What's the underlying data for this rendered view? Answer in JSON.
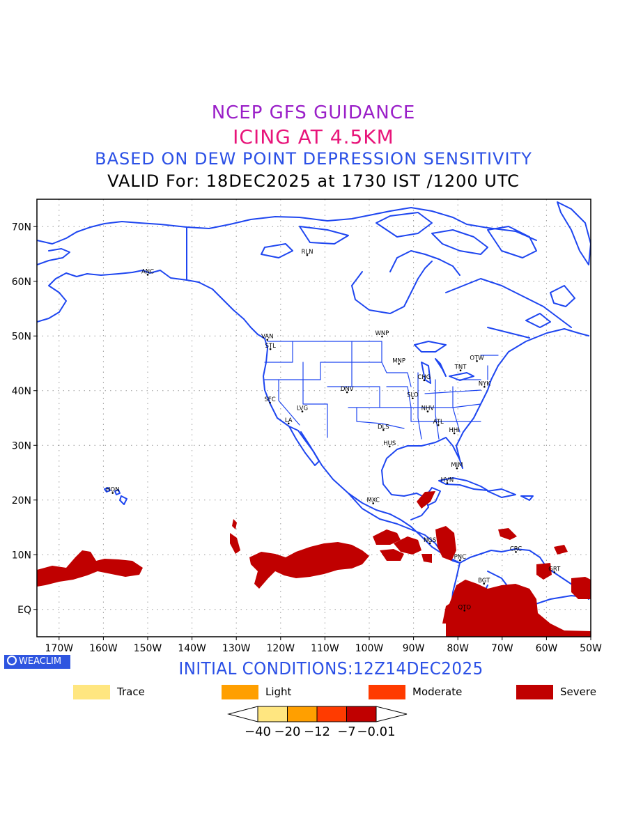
{
  "header": {
    "line1": "NCEP GFS GUIDANCE",
    "line2": "ICING AT 4.5KM",
    "line3": "BASED ON DEW POINT DEPRESSION SENSITIVITY",
    "line4": "VALID For: 18DEC2025 at 1730 IST /1200 UTC"
  },
  "colors": {
    "line1": "#9a1fc8",
    "line2": "#e8157a",
    "line3": "#2b50e6",
    "coast": "#1e46f0",
    "grid": "#999999",
    "trace": "#ffe680",
    "light": "#ff9f00",
    "moderate": "#ff3b00",
    "severe": "#c00000"
  },
  "map": {
    "lon_range": [
      -175,
      -50
    ],
    "lat_range": [
      -5,
      75
    ],
    "lon_ticks": [
      {
        "lon": -170,
        "label": "170W"
      },
      {
        "lon": -160,
        "label": "160W"
      },
      {
        "lon": -150,
        "label": "150W"
      },
      {
        "lon": -140,
        "label": "140W"
      },
      {
        "lon": -130,
        "label": "130W"
      },
      {
        "lon": -120,
        "label": "120W"
      },
      {
        "lon": -110,
        "label": "110W"
      },
      {
        "lon": -100,
        "label": "100W"
      },
      {
        "lon": -90,
        "label": "90W"
      },
      {
        "lon": -80,
        "label": "80W"
      },
      {
        "lon": -70,
        "label": "70W"
      },
      {
        "lon": -60,
        "label": "60W"
      },
      {
        "lon": -50,
        "label": "50W"
      }
    ],
    "lat_ticks": [
      {
        "lat": 70,
        "label": "70N"
      },
      {
        "lat": 60,
        "label": "60N"
      },
      {
        "lat": 50,
        "label": "50N"
      },
      {
        "lat": 40,
        "label": "40N"
      },
      {
        "lat": 30,
        "label": "30N"
      },
      {
        "lat": 20,
        "label": "20N"
      },
      {
        "lat": 10,
        "label": "10N"
      },
      {
        "lat": 0,
        "label": "EQ"
      }
    ],
    "stations": [
      {
        "code": "ANC",
        "lon": -150,
        "lat": 61.2
      },
      {
        "code": "RLN",
        "lon": -114,
        "lat": 64.8
      },
      {
        "code": "VAN",
        "lon": -123,
        "lat": 49.3
      },
      {
        "code": "STL",
        "lon": -122.3,
        "lat": 47.6
      },
      {
        "code": "WNP",
        "lon": -97.1,
        "lat": 49.9
      },
      {
        "code": "MNP",
        "lon": -93.3,
        "lat": 44.9
      },
      {
        "code": "OTW",
        "lon": -75.7,
        "lat": 45.4
      },
      {
        "code": "TNT",
        "lon": -79.4,
        "lat": 43.7
      },
      {
        "code": "CHG",
        "lon": -87.6,
        "lat": 41.9
      },
      {
        "code": "NYK",
        "lon": -74,
        "lat": 40.7
      },
      {
        "code": "DNV",
        "lon": -105,
        "lat": 39.7
      },
      {
        "code": "SFC",
        "lon": -122.4,
        "lat": 37.8
      },
      {
        "code": "LVG",
        "lon": -115.1,
        "lat": 36.2
      },
      {
        "code": "SLO",
        "lon": -90.2,
        "lat": 38.6
      },
      {
        "code": "NHV",
        "lon": -86.8,
        "lat": 36.2
      },
      {
        "code": "LA",
        "lon": -118.2,
        "lat": 34
      },
      {
        "code": "ATL",
        "lon": -84.4,
        "lat": 33.7
      },
      {
        "code": "DLS",
        "lon": -96.8,
        "lat": 32.8
      },
      {
        "code": "HHI",
        "lon": -80.8,
        "lat": 32.2
      },
      {
        "code": "HUS",
        "lon": -95.4,
        "lat": 29.8
      },
      {
        "code": "MIM",
        "lon": -80.2,
        "lat": 25.8
      },
      {
        "code": "HVN",
        "lon": -82.4,
        "lat": 23.1
      },
      {
        "code": "HON",
        "lon": -157.9,
        "lat": 21.3
      },
      {
        "code": "MXC",
        "lon": -99.1,
        "lat": 19.4
      },
      {
        "code": "NGS",
        "lon": -86.3,
        "lat": 12.1
      },
      {
        "code": "CRC",
        "lon": -66.9,
        "lat": 10.5
      },
      {
        "code": "PNC",
        "lon": -79.5,
        "lat": 9.0
      },
      {
        "code": "BGT",
        "lon": -74.1,
        "lat": 4.7
      },
      {
        "code": "GRT",
        "lon": -58.2,
        "lat": 6.8
      },
      {
        "code": "QTO",
        "lon": -78.5,
        "lat": -0.2
      }
    ]
  },
  "footer": {
    "badge": "WEACLIM",
    "initial": "INITIAL CONDITIONS:12Z14DEC2025"
  },
  "legend": [
    {
      "label": "Trace",
      "color": "#ffe680"
    },
    {
      "label": "Light",
      "color": "#ff9f00"
    },
    {
      "label": "Moderate",
      "color": "#ff3b00"
    },
    {
      "label": "Severe",
      "color": "#c00000"
    }
  ],
  "colorbar": {
    "colors": [
      "#ffe680",
      "#ff9f00",
      "#ff3b00",
      "#c00000"
    ],
    "labels": [
      "-40",
      "-20",
      "-12",
      "-7",
      "-0.01"
    ]
  }
}
